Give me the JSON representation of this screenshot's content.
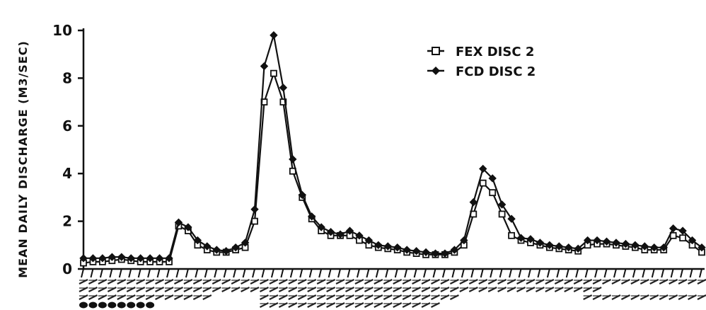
{
  "chart_data": {
    "type": "line",
    "title": "",
    "xlabel": "",
    "ylabel": "MEAN DAILY DISCHARGE (M3/SEC)",
    "ylim": [
      0,
      10
    ],
    "yticks": [
      0,
      2,
      4,
      6,
      8,
      10
    ],
    "grid": false,
    "legend_position": "top-right",
    "series": [
      {
        "name": "FEX DISC 2",
        "marker": "square",
        "values": [
          0.25,
          0.3,
          0.3,
          0.35,
          0.4,
          0.35,
          0.3,
          0.3,
          0.3,
          0.3,
          1.8,
          1.6,
          1.0,
          0.8,
          0.7,
          0.7,
          0.8,
          0.9,
          2.0,
          7.0,
          8.2,
          7.0,
          4.1,
          3.0,
          2.1,
          1.6,
          1.4,
          1.4,
          1.4,
          1.2,
          1.0,
          0.9,
          0.85,
          0.8,
          0.7,
          0.65,
          0.6,
          0.6,
          0.6,
          0.7,
          1.0,
          2.3,
          3.6,
          3.2,
          2.3,
          1.4,
          1.2,
          1.1,
          1.0,
          0.9,
          0.85,
          0.8,
          0.75,
          1.0,
          1.05,
          1.05,
          1.0,
          0.95,
          0.9,
          0.8,
          0.8,
          0.8,
          1.4,
          1.3,
          1.0,
          0.7
        ]
      },
      {
        "name": "FCD DISC 2",
        "marker": "diamond",
        "values": [
          0.45,
          0.45,
          0.45,
          0.5,
          0.5,
          0.45,
          0.45,
          0.45,
          0.45,
          0.45,
          1.95,
          1.75,
          1.2,
          0.95,
          0.8,
          0.75,
          0.9,
          1.1,
          2.5,
          8.5,
          9.8,
          7.6,
          4.6,
          3.1,
          2.2,
          1.75,
          1.55,
          1.45,
          1.6,
          1.4,
          1.2,
          1.0,
          0.95,
          0.9,
          0.8,
          0.75,
          0.7,
          0.65,
          0.65,
          0.8,
          1.2,
          2.8,
          4.2,
          3.8,
          2.7,
          2.1,
          1.3,
          1.25,
          1.1,
          1.0,
          0.95,
          0.9,
          0.85,
          1.2,
          1.2,
          1.15,
          1.1,
          1.05,
          1.0,
          0.95,
          0.9,
          0.9,
          1.7,
          1.6,
          1.2,
          0.9
        ]
      }
    ]
  }
}
